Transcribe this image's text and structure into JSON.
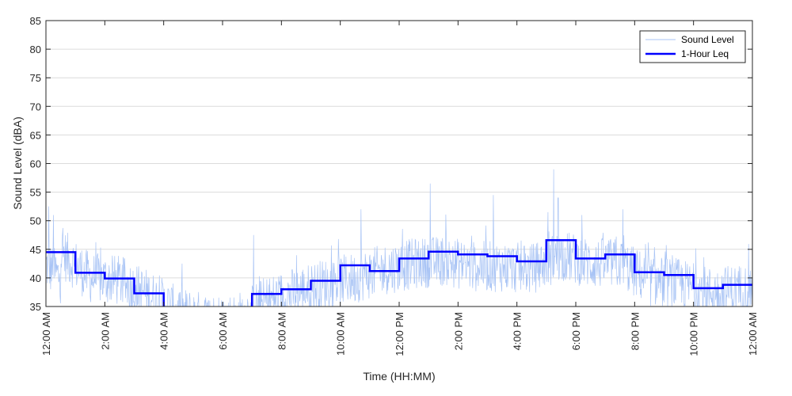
{
  "chart_data": {
    "type": "line",
    "title": "",
    "xlabel": "Time (HH:MM)",
    "ylabel": "Sound Level (dBA)",
    "ylim": [
      35,
      85
    ],
    "xlim_hours": [
      0,
      24
    ],
    "y_ticks": [
      35,
      40,
      45,
      50,
      55,
      60,
      65,
      70,
      75,
      80,
      85
    ],
    "x_ticks": [
      {
        "hour": 0,
        "label": "12:00 AM"
      },
      {
        "hour": 2,
        "label": "2:00 AM"
      },
      {
        "hour": 4,
        "label": "4:00 AM"
      },
      {
        "hour": 6,
        "label": "6:00 AM"
      },
      {
        "hour": 8,
        "label": "8:00 AM"
      },
      {
        "hour": 10,
        "label": "10:00 AM"
      },
      {
        "hour": 12,
        "label": "12:00 PM"
      },
      {
        "hour": 14,
        "label": "2:00 PM"
      },
      {
        "hour": 16,
        "label": "4:00 PM"
      },
      {
        "hour": 18,
        "label": "6:00 PM"
      },
      {
        "hour": 20,
        "label": "8:00 PM"
      },
      {
        "hour": 22,
        "label": "10:00 PM"
      },
      {
        "hour": 24,
        "label": "12:00 AM"
      }
    ],
    "grid": true,
    "legend_position": "top-right",
    "series": [
      {
        "name": "Sound Level",
        "style": "thin-line",
        "color": "#a9c4f5",
        "hourly_median": [
          44.5,
          40,
          39.5,
          37,
          34,
          33,
          33,
          36,
          37.5,
          39,
          40,
          41.5,
          42.5,
          43,
          42,
          42,
          41.5,
          44,
          42.5,
          42.5,
          39.5,
          39,
          37.5,
          38
        ],
        "spread": 4.5,
        "peaks": [
          {
            "hour": 0.1,
            "value": 52.5
          },
          {
            "hour": 0.25,
            "value": 51
          },
          {
            "hour": 7.05,
            "value": 47.5
          },
          {
            "hour": 10.7,
            "value": 52
          },
          {
            "hour": 13.05,
            "value": 56.5
          },
          {
            "hour": 15.2,
            "value": 54.5
          },
          {
            "hour": 17.05,
            "value": 51.5
          },
          {
            "hour": 17.25,
            "value": 59
          },
          {
            "hour": 17.4,
            "value": 54
          },
          {
            "hour": 19.6,
            "value": 52
          }
        ]
      },
      {
        "name": "1-Hour Leq",
        "style": "step",
        "color": "#0000ff",
        "hourly_values": [
          44.5,
          40.9,
          39.9,
          37.3,
          34.5,
          34.0,
          34.0,
          37.2,
          38.0,
          39.5,
          42.2,
          41.2,
          43.4,
          44.6,
          44.1,
          43.8,
          42.9,
          46.6,
          43.4,
          44.1,
          41.0,
          40.5,
          38.2,
          38.8
        ]
      }
    ]
  },
  "colors": {
    "grid": "#dcdcdc",
    "axis": "#262626",
    "background": "#ffffff"
  }
}
